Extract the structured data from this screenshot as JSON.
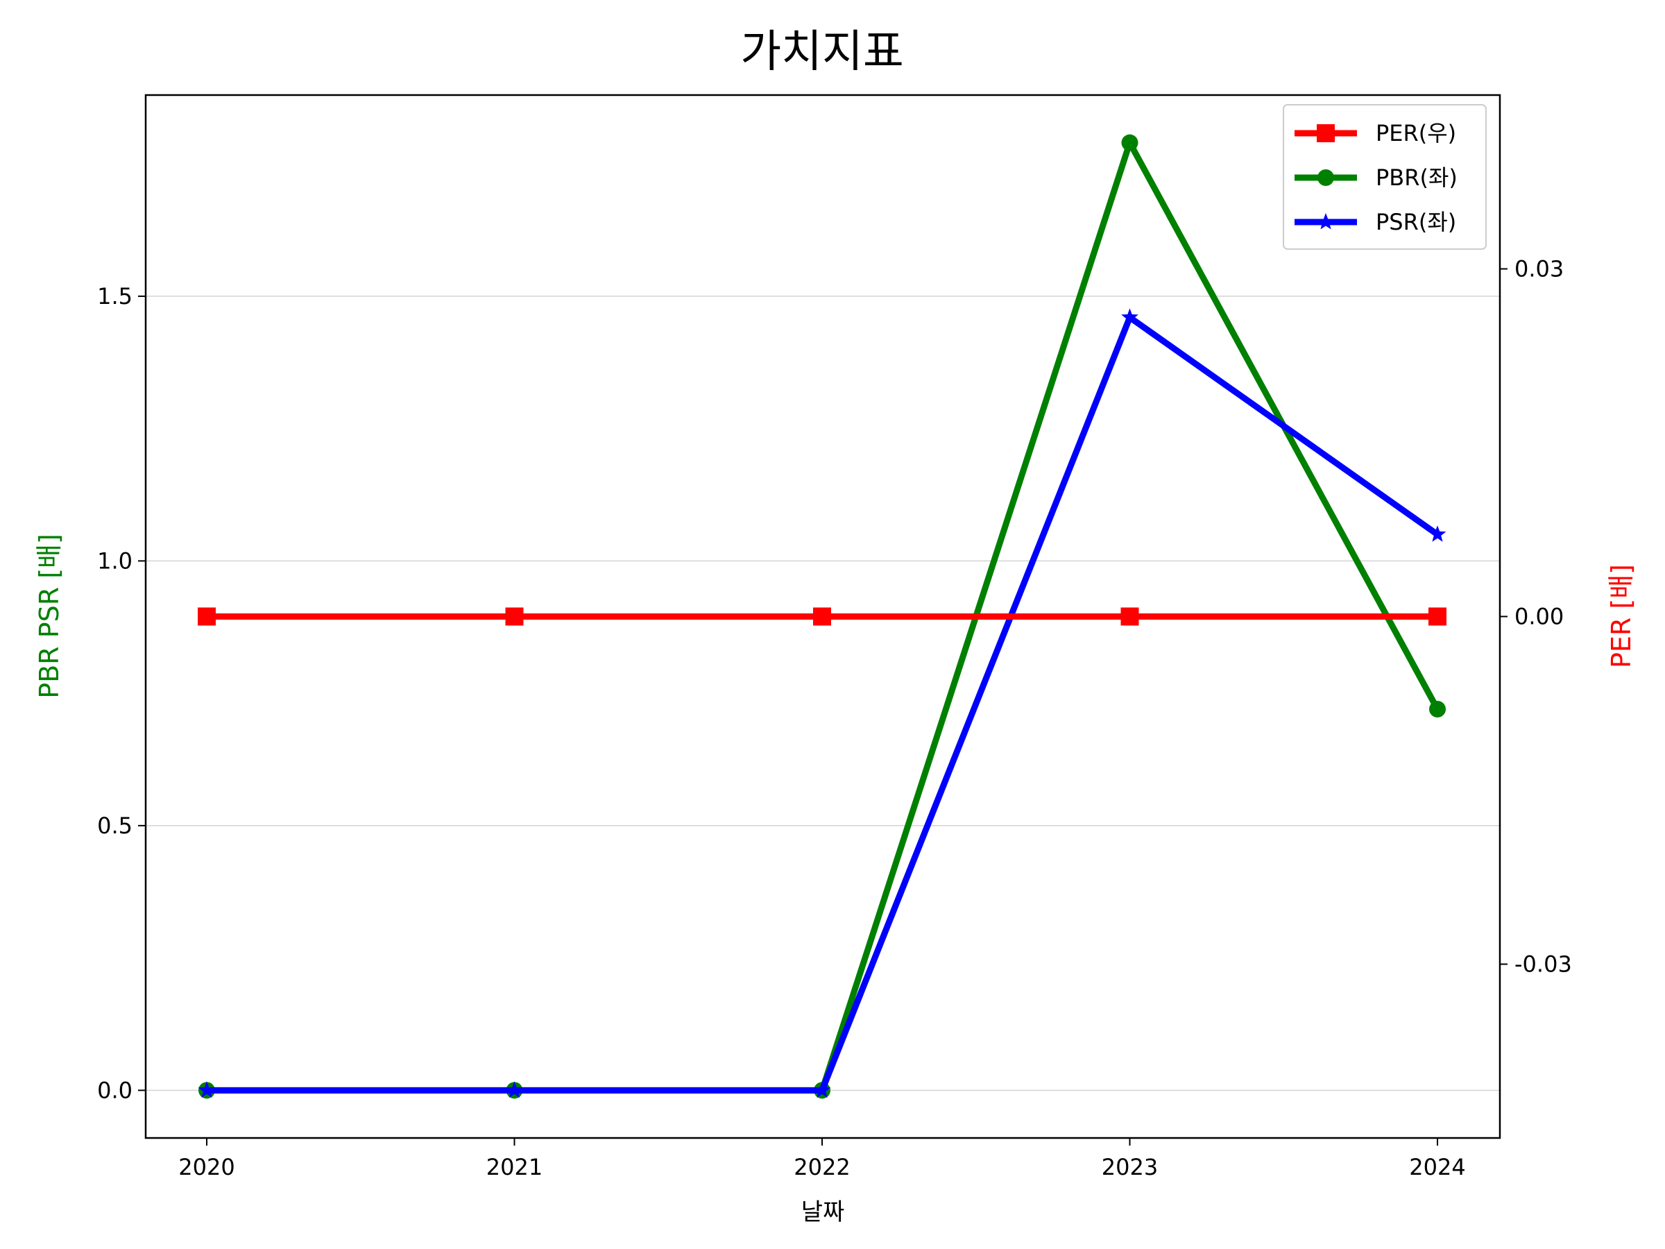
{
  "chart_data": {
    "type": "line",
    "title": "가치지표",
    "xlabel": "날짜",
    "ylabel_left": "PBR PSR [배]",
    "ylabel_right": "PER [배]",
    "categories": [
      "2020",
      "2021",
      "2022",
      "2023",
      "2024"
    ],
    "ylim_left": [
      -0.09,
      1.88
    ],
    "yticks_left": [
      "0.0",
      "0.5",
      "1.0",
      "1.5"
    ],
    "ylim_right": [
      -0.045,
      0.045
    ],
    "yticks_right": [
      "-0.03",
      "0.00",
      "0.03"
    ],
    "grid": "horizontal (left axis)",
    "legend_position": "top-right",
    "colors": {
      "per": "#ff0000",
      "pbr": "#008000",
      "psr": "#0000ff",
      "left_label": "#008000",
      "right_label": "#ff0000",
      "grid": "#d3d3d3"
    },
    "series": [
      {
        "name": "PER(우)",
        "axis": "right",
        "marker": "square",
        "values": [
          0,
          0,
          0,
          0,
          0
        ]
      },
      {
        "name": "PBR(좌)",
        "axis": "left",
        "marker": "circle",
        "values": [
          0,
          0,
          0,
          1.79,
          0.72
        ]
      },
      {
        "name": "PSR(좌)",
        "axis": "left",
        "marker": "star",
        "values": [
          0,
          0,
          0,
          1.46,
          1.05
        ]
      }
    ]
  }
}
